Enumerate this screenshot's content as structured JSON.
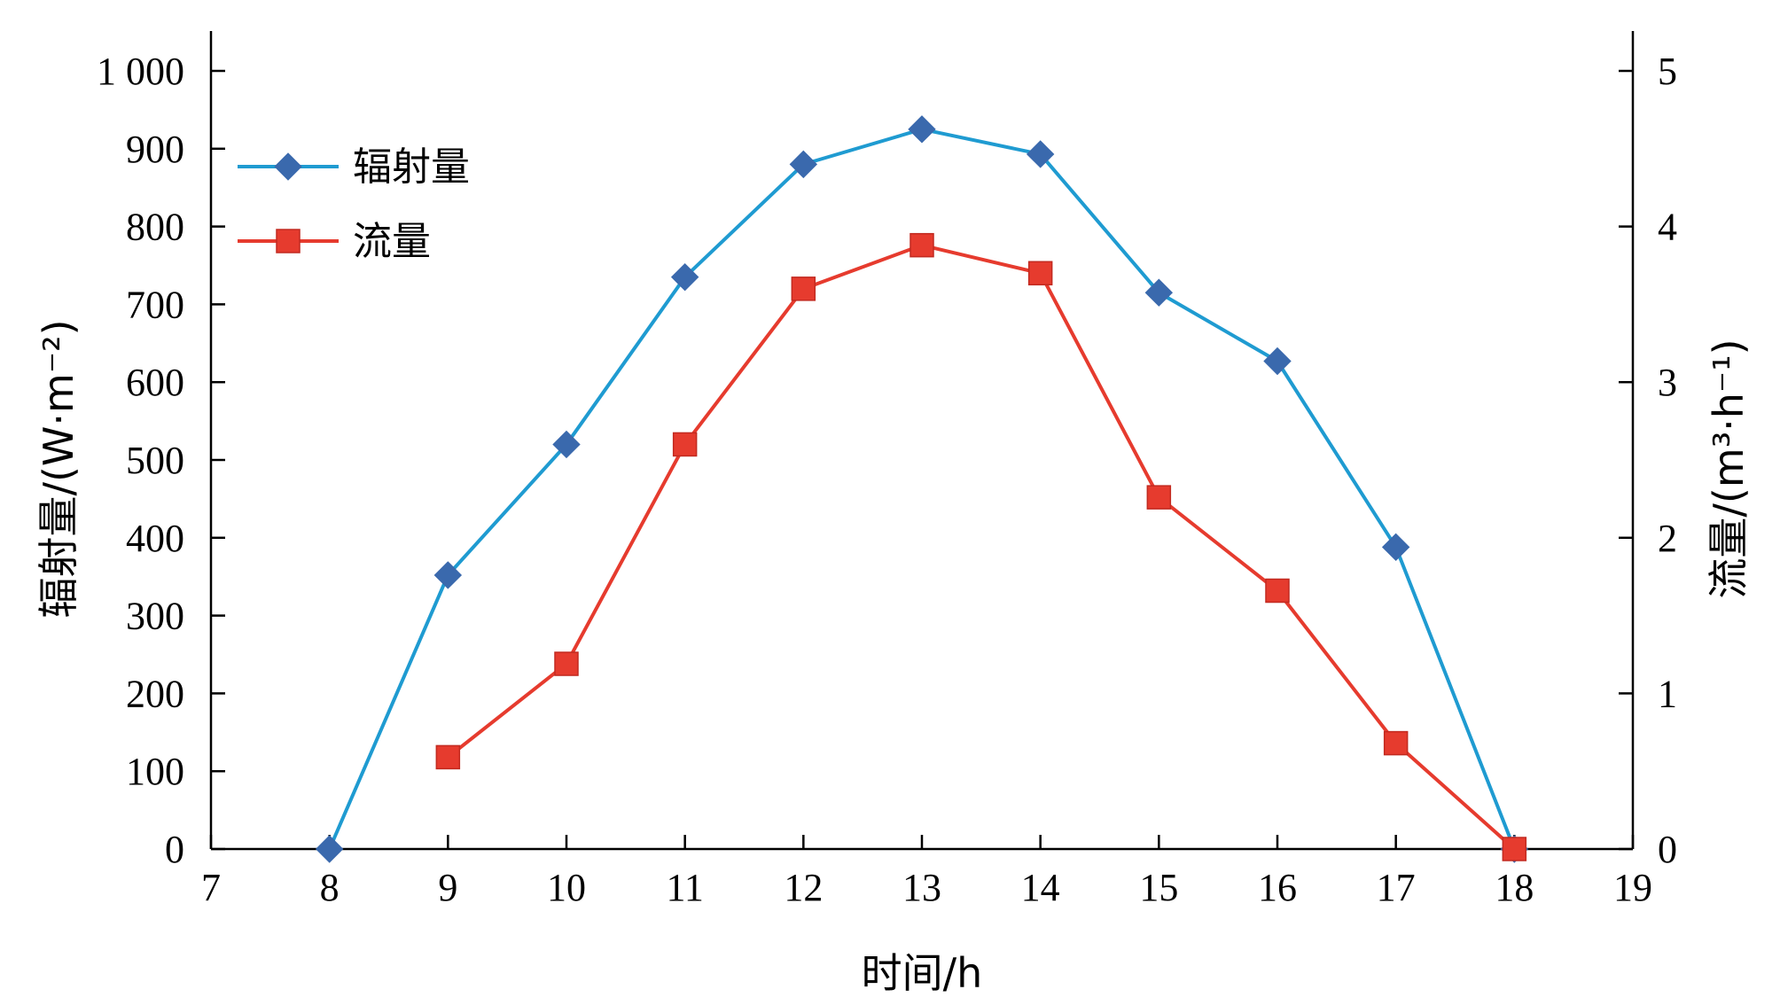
{
  "chart_data": {
    "type": "line",
    "xlabel": "时间/h",
    "ylabel_left": "辐射量/(W·m⁻²)",
    "ylabel_right": "流量/(m³·h⁻¹)",
    "xlim": [
      7,
      19
    ],
    "ylim_left": [
      0,
      1000
    ],
    "ylim_right": [
      0,
      5
    ],
    "x_ticks": [
      "7",
      "8",
      "9",
      "10",
      "11",
      "12",
      "13",
      "14",
      "15",
      "16",
      "17",
      "18",
      "19"
    ],
    "y_left_ticks": [
      "0",
      "100",
      "200",
      "300",
      "400",
      "500",
      "600",
      "700",
      "800",
      "900",
      "1 000"
    ],
    "y_right_ticks": [
      "0",
      "1",
      "2",
      "3",
      "4",
      "5"
    ],
    "legend_position": "top-left",
    "grid": false,
    "series": [
      {
        "name": "辐射量",
        "axis": "left",
        "color": "#1f9bd1",
        "marker_color": "#3a69ad",
        "marker": "diamond",
        "x": [
          8,
          9,
          10,
          11,
          12,
          13,
          14,
          15,
          16,
          17,
          18
        ],
        "values": [
          0,
          352,
          520,
          735,
          880,
          925,
          893,
          715,
          627,
          388,
          0
        ]
      },
      {
        "name": "流量",
        "axis": "right",
        "color": "#e63b2e",
        "marker_color": "#e63b2e",
        "marker": "square",
        "x": [
          9,
          10,
          11,
          12,
          13,
          14,
          15,
          16,
          17,
          18
        ],
        "values": [
          0.59,
          1.19,
          2.6,
          3.6,
          3.88,
          3.7,
          2.26,
          1.66,
          0.68,
          0
        ]
      }
    ]
  }
}
